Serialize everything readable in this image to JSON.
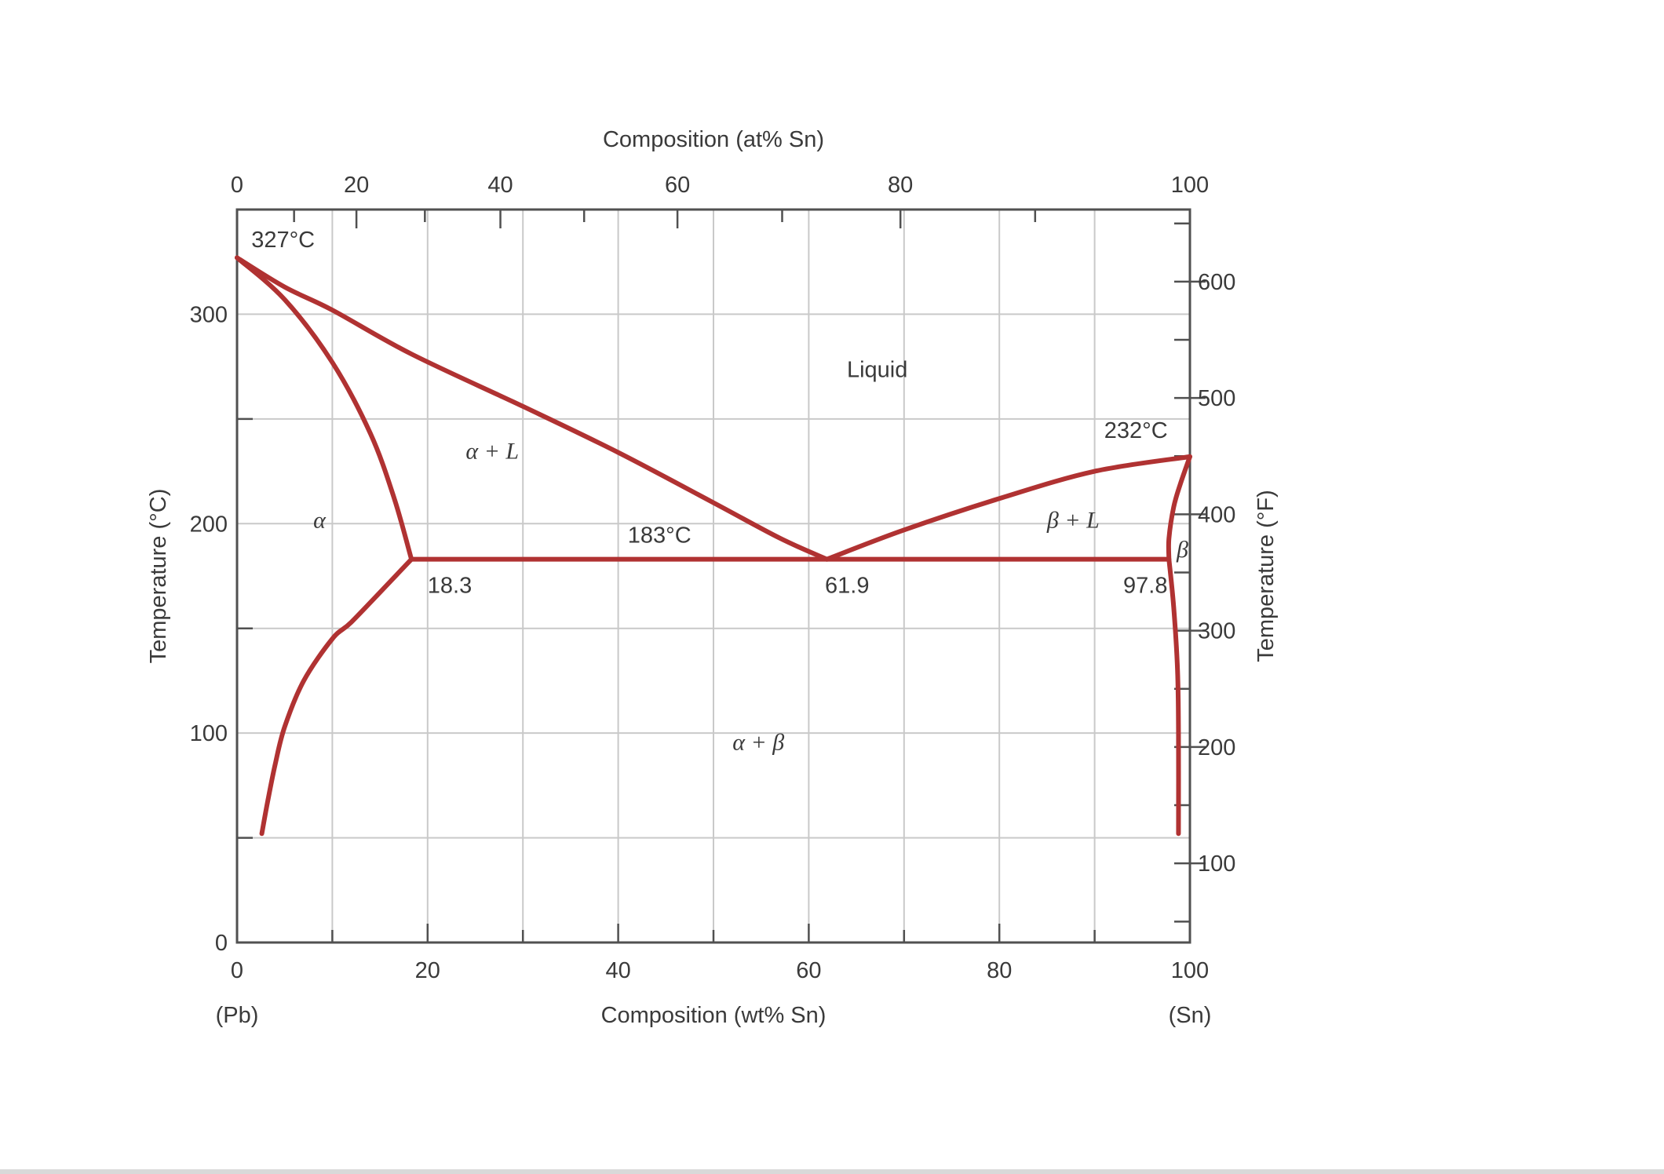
{
  "chart_data": {
    "type": "line",
    "title": "",
    "xlabel": "Composition (wt% Sn)",
    "x2label": "Composition (at% Sn)",
    "ylabel": "Temperature (°C)",
    "y2label": "Temperature (°F)",
    "xlim": [
      0,
      100
    ],
    "ylim": [
      0,
      350
    ],
    "y2lim": [
      32,
      662
    ],
    "grid": true,
    "x_ticks": [
      0,
      20,
      40,
      60,
      80,
      100
    ],
    "x2_ticks": [
      0,
      20,
      40,
      60,
      80,
      100
    ],
    "y_ticks": [
      0,
      100,
      200,
      300
    ],
    "y2_ticks": [
      100,
      200,
      300,
      400,
      500,
      600
    ],
    "x_end_labels": [
      "(Pb)",
      "(Sn)"
    ],
    "series": [
      {
        "id": "liquidus-alpha",
        "points": [
          [
            0,
            327
          ],
          [
            5,
            313
          ],
          [
            10,
            302
          ],
          [
            18.3,
            281
          ],
          [
            30,
            256
          ],
          [
            40,
            234
          ],
          [
            50,
            210
          ],
          [
            57,
            193
          ],
          [
            61.9,
            183
          ]
        ]
      },
      {
        "id": "solidus-alpha",
        "points": [
          [
            0,
            327
          ],
          [
            5,
            307
          ],
          [
            10,
            277
          ],
          [
            14,
            243
          ],
          [
            16.5,
            212
          ],
          [
            18.3,
            183
          ]
        ]
      },
      {
        "id": "solvus-alpha",
        "points": [
          [
            18.3,
            183
          ],
          [
            16,
            172
          ],
          [
            12,
            153
          ],
          [
            10,
            145
          ],
          [
            7,
            125
          ],
          [
            5,
            103
          ],
          [
            4,
            85
          ],
          [
            3.2,
            67
          ],
          [
            2.6,
            52
          ]
        ]
      },
      {
        "id": "eutectic-isotherm",
        "points": [
          [
            18.3,
            183
          ],
          [
            97.8,
            183
          ]
        ]
      },
      {
        "id": "liquidus-beta",
        "points": [
          [
            61.9,
            183
          ],
          [
            70,
            197
          ],
          [
            80,
            212
          ],
          [
            90,
            225
          ],
          [
            100,
            232
          ]
        ]
      },
      {
        "id": "solidus-beta",
        "points": [
          [
            97.8,
            183
          ],
          [
            97.8,
            193
          ],
          [
            98.3,
            208
          ],
          [
            99,
            219
          ],
          [
            100,
            232
          ]
        ]
      },
      {
        "id": "solvus-beta",
        "points": [
          [
            97.8,
            183
          ],
          [
            98.3,
            160
          ],
          [
            98.7,
            130
          ],
          [
            98.8,
            100
          ],
          [
            98.8,
            52
          ]
        ]
      }
    ],
    "annotations": [
      {
        "text": "327°C",
        "x": 1.5,
        "y": 332
      },
      {
        "text": "232°C",
        "x": 91,
        "y": 241
      },
      {
        "text": "183°C",
        "x": 41,
        "y": 191
      },
      {
        "text": "18.3",
        "x": 20,
        "y": 167
      },
      {
        "text": "61.9",
        "x": 61.7,
        "y": 167
      },
      {
        "text": "97.8",
        "x": 93,
        "y": 167
      },
      {
        "text": "Liquid",
        "x": 64,
        "y": 270
      },
      {
        "text": "α + L",
        "x": 24,
        "y": 231
      },
      {
        "text": "α",
        "x": 8,
        "y": 198
      },
      {
        "text": "β + L",
        "x": 85,
        "y": 198
      },
      {
        "text": "β",
        "x": 98.6,
        "y": 184
      },
      {
        "text": "α + β",
        "x": 52,
        "y": 92
      }
    ]
  }
}
